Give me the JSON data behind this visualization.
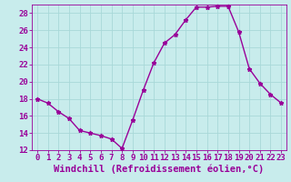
{
  "x": [
    0,
    1,
    2,
    3,
    4,
    5,
    6,
    7,
    8,
    9,
    10,
    11,
    12,
    13,
    14,
    15,
    16,
    17,
    18,
    19,
    20,
    21,
    22,
    23
  ],
  "y": [
    18.0,
    17.5,
    16.5,
    15.7,
    14.3,
    14.0,
    13.7,
    13.3,
    12.2,
    15.5,
    19.0,
    22.2,
    24.5,
    25.5,
    27.2,
    28.7,
    28.7,
    28.8,
    28.8,
    25.8,
    21.5,
    19.8,
    18.5,
    17.5
  ],
  "line_color": "#990099",
  "marker": "*",
  "bg_color": "#c8ecec",
  "grid_color": "#a8d8d8",
  "xlabel": "Windchill (Refroidissement éolien,°C)",
  "ylim": [
    12,
    29
  ],
  "xlim": [
    -0.5,
    23.5
  ],
  "yticks": [
    12,
    14,
    16,
    18,
    20,
    22,
    24,
    26,
    28
  ],
  "xticks": [
    0,
    1,
    2,
    3,
    4,
    5,
    6,
    7,
    8,
    9,
    10,
    11,
    12,
    13,
    14,
    15,
    16,
    17,
    18,
    19,
    20,
    21,
    22,
    23
  ],
  "tick_label_fontsize": 6.5,
  "xlabel_fontsize": 7.5,
  "line_width": 1.0,
  "marker_size": 3.5
}
